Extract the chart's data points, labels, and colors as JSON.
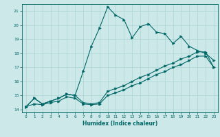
{
  "xlabel": "Humidex (Indice chaleur)",
  "xlim": [
    -0.5,
    23.5
  ],
  "ylim": [
    13.8,
    21.5
  ],
  "xticks": [
    0,
    1,
    2,
    3,
    4,
    5,
    6,
    7,
    8,
    9,
    10,
    11,
    12,
    13,
    14,
    15,
    16,
    17,
    18,
    19,
    20,
    21,
    22,
    23
  ],
  "yticks": [
    14,
    15,
    16,
    17,
    18,
    19,
    20,
    21
  ],
  "background_color": "#cce8e8",
  "grid_color": "#aad4d4",
  "line_color": "#006666",
  "line2_x": [
    0,
    1,
    2,
    3,
    4,
    5,
    6,
    7,
    8,
    9,
    10,
    11,
    12,
    13,
    14,
    15,
    16,
    17,
    18,
    19,
    20,
    21,
    22,
    23
  ],
  "line2_y": [
    14.2,
    14.8,
    14.4,
    14.6,
    14.8,
    15.1,
    15.0,
    16.7,
    18.5,
    19.8,
    21.3,
    20.7,
    20.4,
    19.1,
    19.9,
    20.1,
    19.5,
    19.4,
    18.7,
    19.2,
    18.5,
    18.2,
    18.0,
    17.5
  ],
  "line1_x": [
    0,
    1,
    2,
    3,
    4,
    5,
    6,
    7,
    8,
    9,
    10,
    11,
    12,
    13,
    14,
    15,
    16,
    17,
    18,
    19,
    20,
    21,
    22,
    23
  ],
  "line1_y": [
    14.2,
    14.8,
    14.4,
    14.6,
    14.8,
    15.1,
    15.0,
    14.5,
    14.4,
    14.5,
    15.3,
    15.5,
    15.7,
    16.0,
    16.3,
    16.5,
    16.8,
    17.1,
    17.3,
    17.6,
    17.8,
    18.1,
    18.1,
    17.0
  ],
  "line3_x": [
    0,
    1,
    2,
    3,
    4,
    5,
    6,
    7,
    8,
    9,
    10,
    11,
    12,
    13,
    14,
    15,
    16,
    17,
    18,
    19,
    20,
    21,
    22,
    23
  ],
  "line3_y": [
    14.2,
    14.4,
    14.35,
    14.5,
    14.6,
    14.9,
    14.8,
    14.4,
    14.35,
    14.4,
    15.0,
    15.2,
    15.4,
    15.7,
    15.9,
    16.2,
    16.5,
    16.7,
    17.0,
    17.2,
    17.5,
    17.8,
    17.8,
    17.0
  ]
}
